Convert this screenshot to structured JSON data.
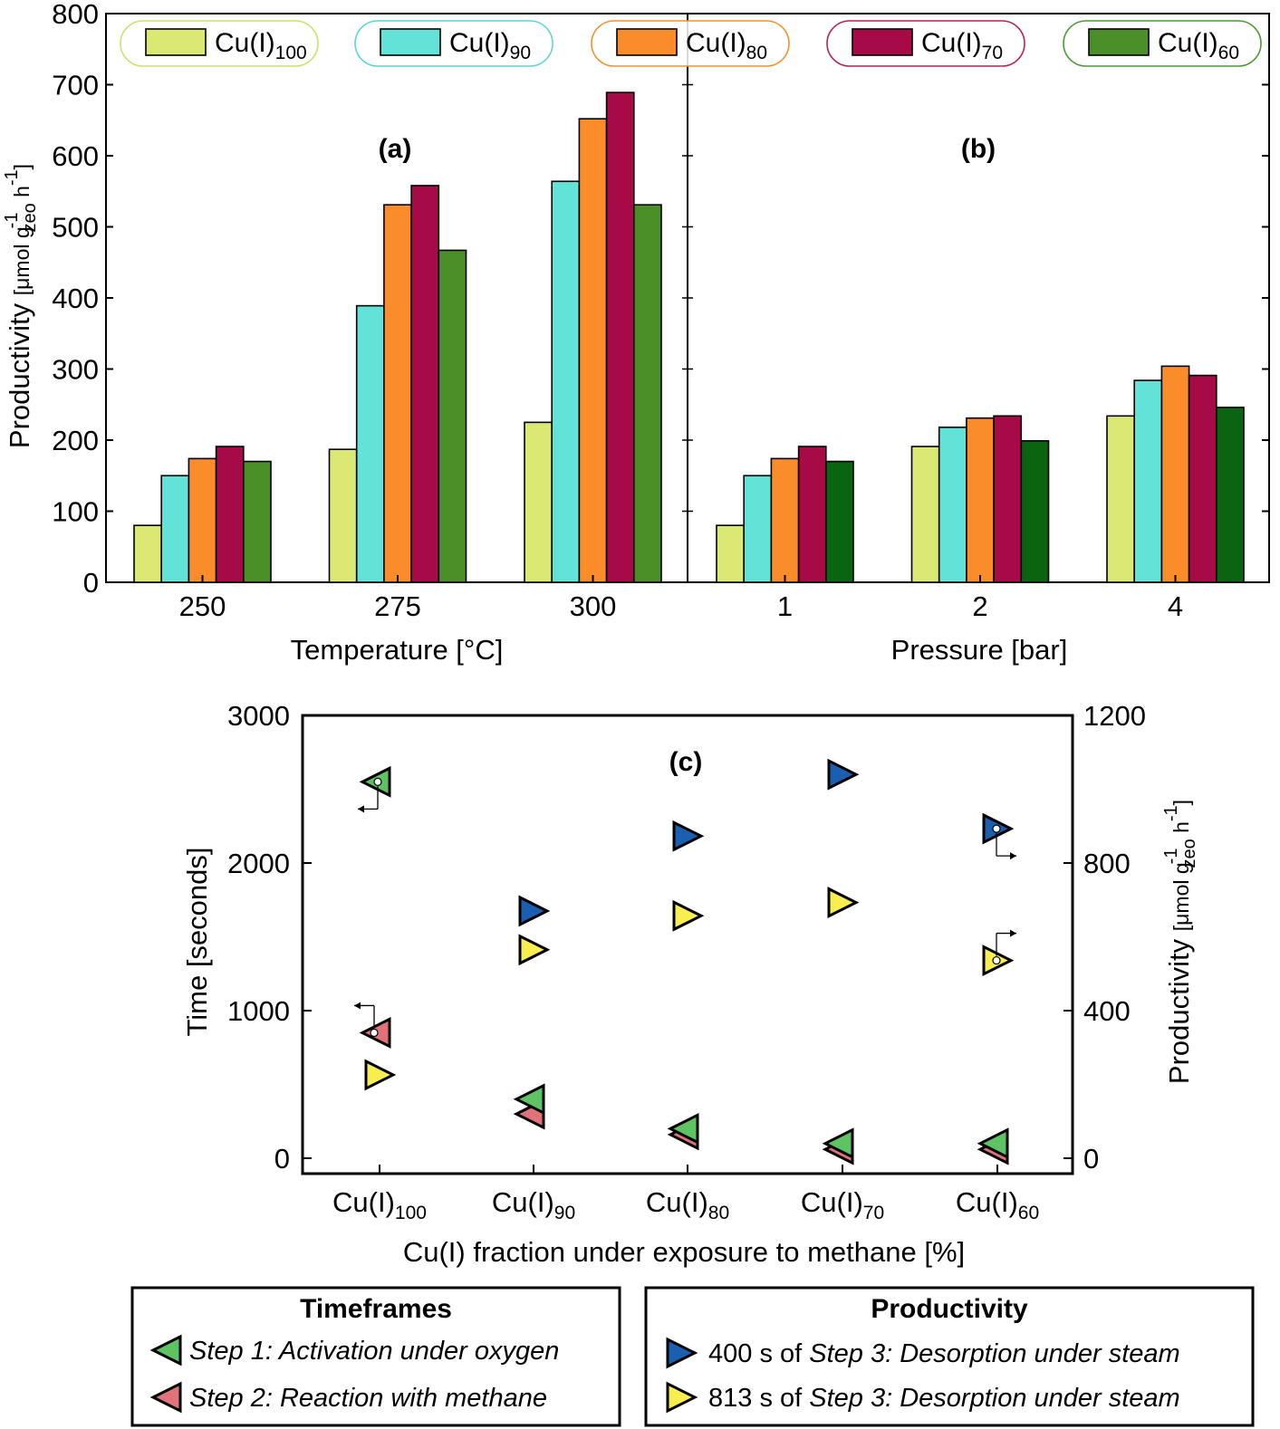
{
  "chart_data": [
    {
      "panel": "(a)",
      "type": "bar",
      "xlabel": "Temperature [°C]",
      "ylabel": "Productivity",
      "ylabel_unit": "[μmol g",
      "ylabel_unit_sub": "zeo",
      "ylabel_unit_sup": "-1",
      "ylabel_unit_end": " h",
      "ylabel_unit_end_sup": "-1",
      "ylabel_unit_close": "]",
      "ylim": [
        0,
        800
      ],
      "yticks": [
        "0",
        "100",
        "200",
        "300",
        "400",
        "500",
        "600",
        "700",
        "800"
      ],
      "categories": [
        "250",
        "275",
        "300"
      ],
      "series": [
        {
          "name": "Cu(I)100",
          "values": [
            80,
            187,
            225
          ]
        },
        {
          "name": "Cu(I)90",
          "values": [
            150,
            389,
            564
          ]
        },
        {
          "name": "Cu(I)80",
          "values": [
            174,
            531,
            652
          ]
        },
        {
          "name": "Cu(I)70",
          "values": [
            191,
            558,
            689
          ]
        },
        {
          "name": "Cu(I)60",
          "values": [
            170,
            467,
            531
          ]
        }
      ]
    },
    {
      "panel": "(b)",
      "type": "bar",
      "xlabel": "Pressure [bar]",
      "ylim": [
        0,
        800
      ],
      "categories": [
        "1",
        "2",
        "4"
      ],
      "series": [
        {
          "name": "Cu(I)100",
          "values": [
            80,
            191,
            234
          ]
        },
        {
          "name": "Cu(I)90",
          "values": [
            150,
            218,
            284
          ]
        },
        {
          "name": "Cu(I)80",
          "values": [
            174,
            231,
            304
          ]
        },
        {
          "name": "Cu(I)70",
          "values": [
            191,
            234,
            291
          ]
        },
        {
          "name": "Cu(I)60",
          "values": [
            170,
            199,
            246
          ]
        }
      ]
    },
    {
      "panel": "(c)",
      "type": "scatter",
      "xlabel": "Cu(I) fraction under exposure to methane [%]",
      "ylabel_left": "Time [seconds]",
      "ylabel_right": "Productivity",
      "ylabel_right_unit": "[μmol g",
      "ylabel_right_unit_sub": "zeo",
      "ylabel_right_unit_sup": "-1",
      "ylabel_right_unit_end": " h",
      "ylabel_right_unit_end_sup": "-1",
      "ylabel_right_unit_close": "]",
      "ylim_left": [
        0,
        3000
      ],
      "ylim_right": [
        0,
        1200
      ],
      "yticks_left": [
        "0",
        "1000",
        "2000",
        "3000"
      ],
      "yticks_right": [
        "0",
        "400",
        "800",
        "1200"
      ],
      "categories": [
        {
          "base": "Cu(I)",
          "sub": "100"
        },
        {
          "base": "Cu(I)",
          "sub": "90"
        },
        {
          "base": "Cu(I)",
          "sub": "80"
        },
        {
          "base": "Cu(I)",
          "sub": "70"
        },
        {
          "base": "Cu(I)",
          "sub": "60"
        }
      ],
      "series": [
        {
          "name": "Step 1: Activation under oxygen",
          "axis": "left",
          "values": [
            2550,
            400,
            200,
            100,
            100
          ]
        },
        {
          "name": "Step 2: Reaction with methane",
          "axis": "left",
          "values": [
            850,
            300,
            160,
            60,
            60
          ]
        },
        {
          "name": "400 s of Step 3: Desorption under steam",
          "axis": "right",
          "values": [
            null,
            670,
            873,
            1040,
            893
          ]
        },
        {
          "name": "813 s of Step 3: Desorption under steam",
          "axis": "right",
          "values": [
            226,
            565,
            657,
            693,
            536
          ]
        }
      ]
    }
  ],
  "legend_top": [
    {
      "base": "Cu(I)",
      "sub": "100"
    },
    {
      "base": "Cu(I)",
      "sub": "90"
    },
    {
      "base": "Cu(I)",
      "sub": "80"
    },
    {
      "base": "Cu(I)",
      "sub": "70"
    },
    {
      "base": "Cu(I)",
      "sub": "60"
    }
  ],
  "legend_bottom": {
    "timeframes": {
      "title": "Timeframes",
      "items": [
        "Step 1: Activation under oxygen",
        "Step 2: Reaction with methane"
      ]
    },
    "productivity": {
      "title": "Productivity",
      "items": [
        {
          "prefix": "400 s of ",
          "italic": "Step 3: Desorption under steam"
        },
        {
          "prefix": "813 s of ",
          "italic": "Step 3: Desorption under steam"
        }
      ]
    }
  },
  "colors": {
    "Cu(I)100": "#dbe874",
    "Cu(I)90": "#63e2d8",
    "Cu(I)80": "#fb8c2a",
    "Cu(I)70": "#a60a47",
    "Cu(I)60": "#4b8f28",
    "Cu(I)60_b": "#0a6410",
    "step1": "#5ec463",
    "step2": "#e0737a",
    "steam400": "#1a5fb0",
    "steam813": "#f9ee50",
    "legend_outline_100": "#cfe06a",
    "legend_outline_90": "#5fd6d6",
    "legend_outline_80": "#f5902e",
    "legend_outline_70": "#b0235a",
    "legend_outline_60": "#4a9a35"
  }
}
